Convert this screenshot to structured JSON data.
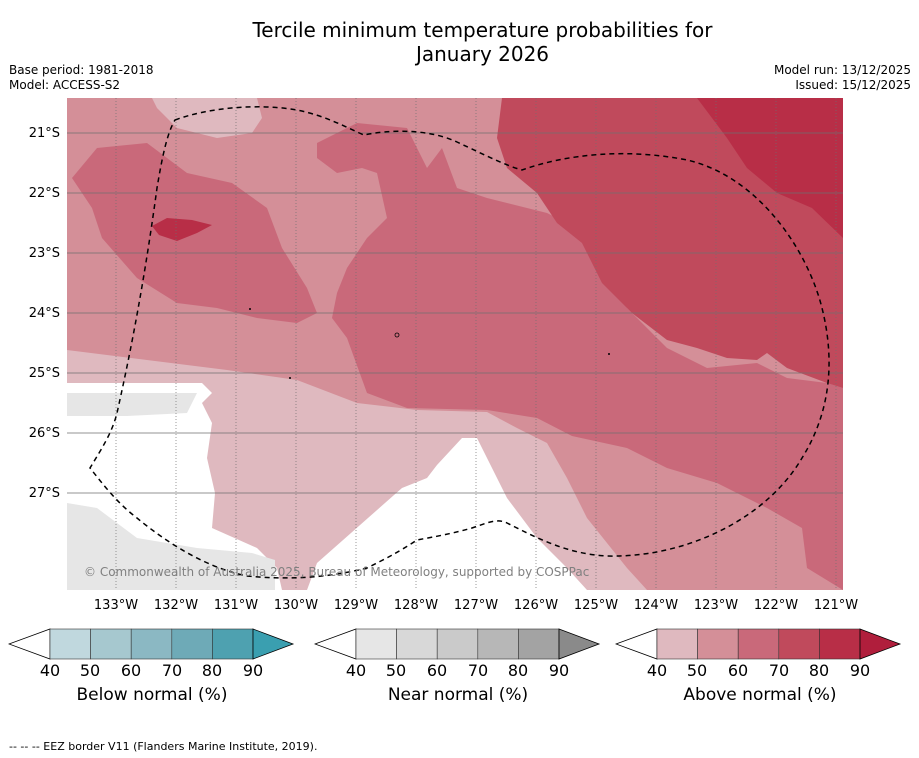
{
  "header": {
    "title_line1": "Tercile minimum temperature probabilities for",
    "title_line2": "January 2026",
    "base_period": "Base period: 1981-2018",
    "model": "Model: ACCESS-S2",
    "model_run": "Model run: 13/12/2025",
    "issued": "Issued: 15/12/2025"
  },
  "map": {
    "lat_labels": [
      "21°S",
      "22°S",
      "23°S",
      "24°S",
      "25°S",
      "26°S",
      "27°S"
    ],
    "lon_labels": [
      "133°W",
      "132°W",
      "131°W",
      "130°W",
      "129°W",
      "128°W",
      "127°W",
      "126°W",
      "125°W",
      "124°W",
      "123°W",
      "122°W",
      "121°W"
    ],
    "copyright": "© Commonwealth of Australia 2025, Bureau of Meteorology, supported by COSPPac",
    "colors": {
      "above40": "#dfb9bf",
      "above50": "#d48f98",
      "above60": "#c9697a",
      "above70": "#c04a5c",
      "above80": "#b82e47",
      "land": "#ffffff",
      "grey": "#e6e6e6"
    }
  },
  "colorbars": [
    {
      "label": "Below normal (%)",
      "ticks": [
        "40",
        "50",
        "60",
        "70",
        "80",
        "90"
      ],
      "colors": [
        "#c0d8de",
        "#a6c8cf",
        "#8bb8c3",
        "#6eaab7",
        "#4ea1b0",
        "#3a9fb0"
      ]
    },
    {
      "label": "Near normal (%)",
      "ticks": [
        "40",
        "50",
        "60",
        "70",
        "80",
        "90"
      ],
      "colors": [
        "#e6e6e6",
        "#d8d8d8",
        "#cacaca",
        "#b7b7b7",
        "#a3a3a3",
        "#8a8a8a"
      ]
    },
    {
      "label": "Above normal (%)",
      "ticks": [
        "40",
        "50",
        "60",
        "70",
        "80",
        "90"
      ],
      "colors": [
        "#dfb9bf",
        "#d48f98",
        "#c9697a",
        "#c04a5c",
        "#b82e47",
        "#b01e3c"
      ]
    }
  ],
  "footnote": "--  --  -- EEZ border V11 (Flanders Marine Institute, 2019)."
}
